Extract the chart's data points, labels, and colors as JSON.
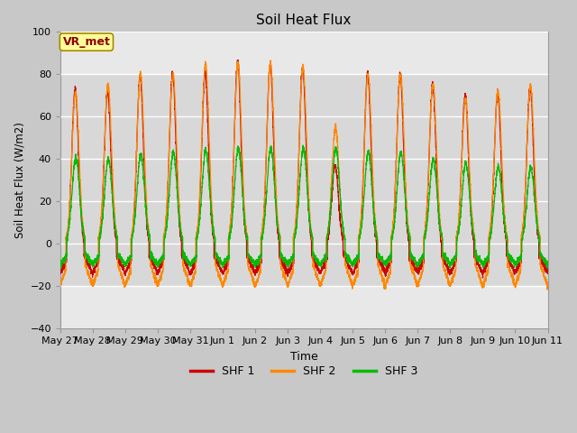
{
  "title": "Soil Heat Flux",
  "ylabel": "Soil Heat Flux (W/m2)",
  "xlabel": "Time",
  "ylim": [
    -40,
    100
  ],
  "legend_labels": [
    "SHF 1",
    "SHF 2",
    "SHF 3"
  ],
  "legend_colors": [
    "#cc0000",
    "#ff8800",
    "#00bb00"
  ],
  "annotation_text": "VR_met",
  "annotation_bg": "#ffff99",
  "annotation_border": "#aa8800",
  "fig_bg": "#c8c8c8",
  "plot_bg": "#e8e8e8",
  "band_bg": "#d8d8d8",
  "yticks": [
    -40,
    -20,
    0,
    20,
    40,
    60,
    80,
    100
  ],
  "x_tick_labels": [
    "May 27",
    "May 28",
    "May 29",
    "May 30",
    "May 31",
    "Jun 1",
    "Jun 2",
    "Jun 3",
    "Jun 4",
    "Jun 5",
    "Jun 6",
    "Jun 7",
    "Jun 8",
    "Jun 9",
    "Jun 10",
    "Jun 11"
  ],
  "days": 15,
  "pts_per_day": 288,
  "shf1_peaks": [
    73,
    72,
    79,
    80,
    80,
    86,
    85,
    83,
    37,
    80,
    80,
    75,
    70,
    71,
    74
  ],
  "shf2_peaks": [
    71,
    75,
    80,
    80,
    85,
    85,
    85,
    83,
    55,
    80,
    80,
    75,
    68,
    72,
    75
  ],
  "shf3_peaks": [
    41,
    40,
    42,
    43,
    44,
    45,
    45,
    45,
    45,
    43,
    43,
    40,
    38,
    36,
    36
  ],
  "shf1_night": -14,
  "shf2_night": -20,
  "shf3_night": -10
}
